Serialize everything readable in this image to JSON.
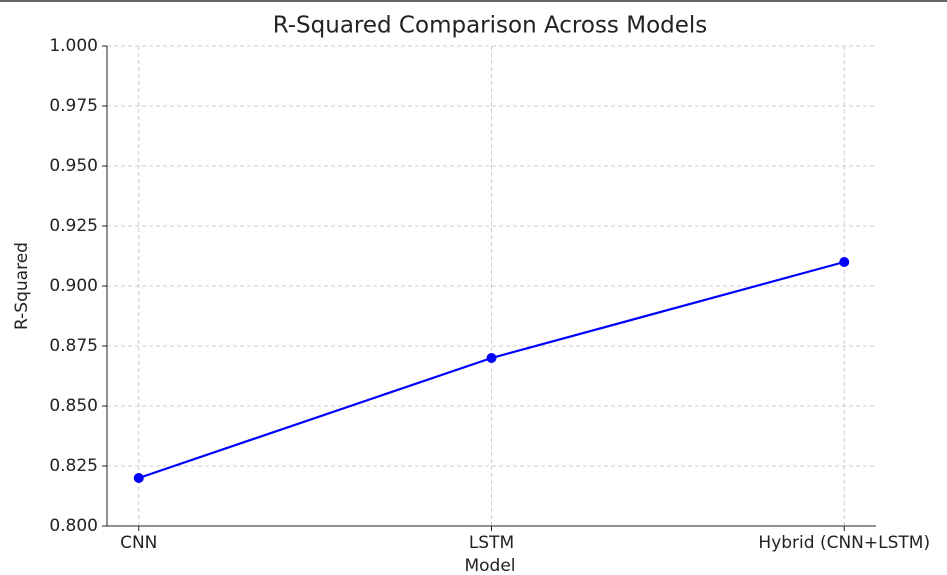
{
  "chart_data": {
    "type": "line",
    "title": "R-Squared Comparison Across Models",
    "x_label": "Model",
    "y_label": "R-Squared",
    "categories": [
      "CNN",
      "LSTM",
      "Hybrid (CNN+LSTM)"
    ],
    "series": [
      {
        "name": "R-Squared",
        "color": "#0000ff",
        "values": [
          0.82,
          0.87,
          0.91
        ]
      }
    ],
    "ylim": [
      0.8,
      1.0
    ],
    "yticks": [
      {
        "value": 0.8,
        "label": "0.800"
      },
      {
        "value": 0.825,
        "label": "0.825"
      },
      {
        "value": 0.85,
        "label": "0.850"
      },
      {
        "value": 0.875,
        "label": "0.875"
      },
      {
        "value": 0.9,
        "label": "0.900"
      },
      {
        "value": 0.925,
        "label": "0.925"
      },
      {
        "value": 0.95,
        "label": "0.950"
      },
      {
        "value": 0.975,
        "label": "0.975"
      },
      {
        "value": 1.0,
        "label": "1.000"
      }
    ],
    "grid": true
  }
}
